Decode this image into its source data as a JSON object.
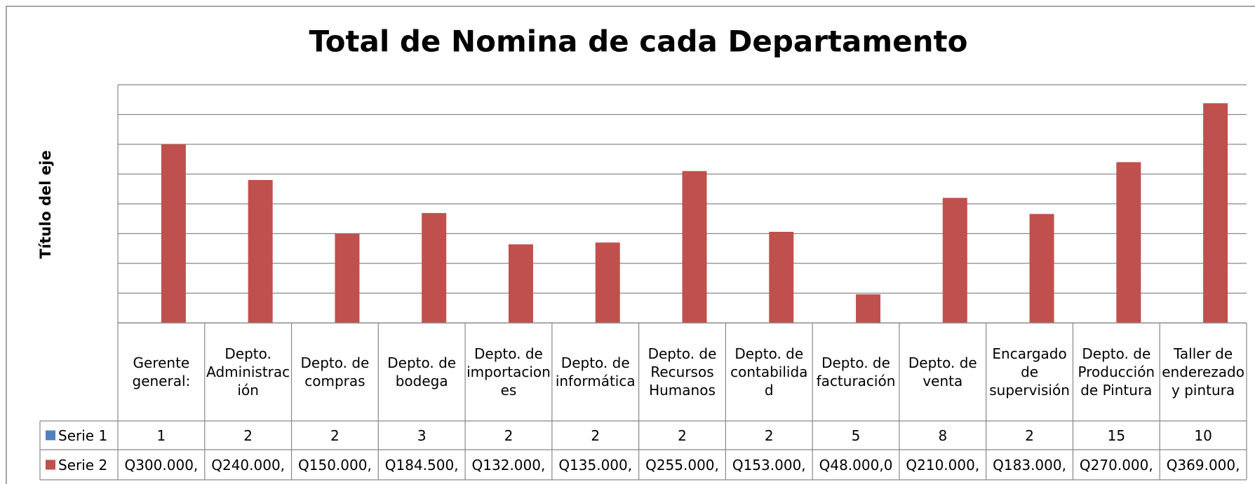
{
  "chart_data": {
    "type": "bar",
    "title": "Total de Nomina de cada Departamento",
    "y_axis_title": "Título del eje",
    "categories": [
      "Gerente general:",
      "Depto. Administración",
      "Depto. de compras",
      "Depto. de bodega",
      "Depto. de importaciones",
      "Depto. de informática",
      "Depto. de Recursos Humanos",
      "Depto. de contabilidad",
      "Depto. de facturación",
      "Depto. de venta",
      "Encargado de supervisión",
      "Depto. de Producción de Pintura",
      "Taller de enderezado y pintura"
    ],
    "series": [
      {
        "name": "Serie 1",
        "color": "#4f81bd",
        "values": [
          1,
          2,
          2,
          3,
          2,
          2,
          2,
          2,
          5,
          8,
          2,
          15,
          10
        ]
      },
      {
        "name": "Serie 2",
        "color": "#c0504d",
        "values": [
          300000,
          240000,
          150000,
          184500,
          132000,
          135000,
          255000,
          153000,
          48000,
          210000,
          183000,
          270000,
          369000
        ],
        "value_labels": [
          "Q300.000,",
          "Q240.000,",
          "Q150.000,",
          "Q184.500,",
          "Q132.000,",
          "Q135.000,",
          "Q255.000,",
          "Q153.000,",
          "Q48.000,0",
          "Q210.000,",
          "Q183.000,",
          "Q270.000,",
          "Q369.000,"
        ]
      }
    ],
    "ylim": [
      0,
      400000
    ],
    "yticks": [
      0,
      50000,
      100000,
      150000,
      200000,
      250000,
      300000,
      350000,
      400000
    ],
    "grid": true
  }
}
